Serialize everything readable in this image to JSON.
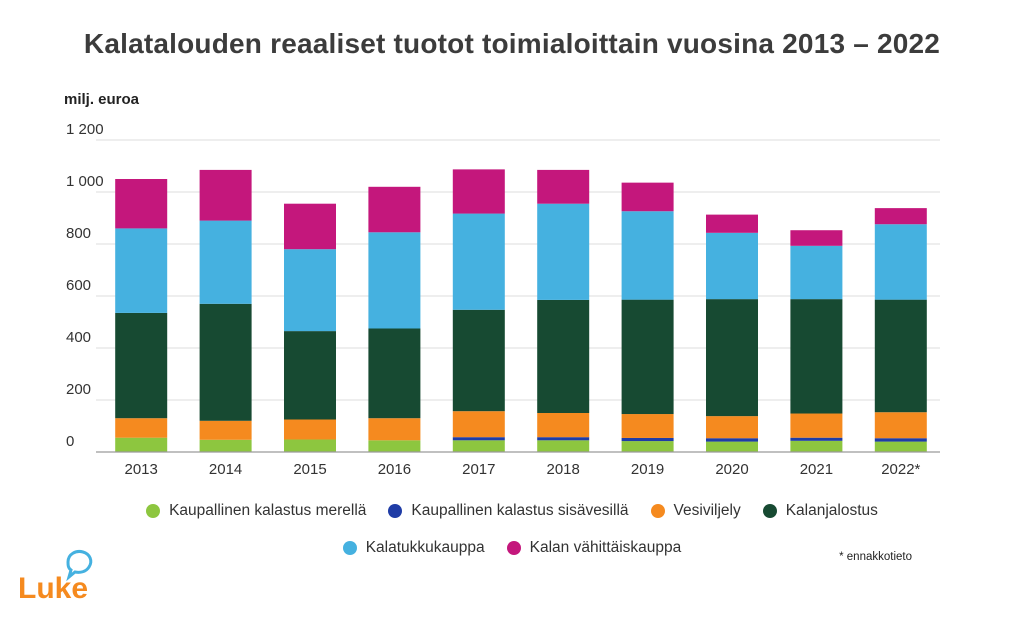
{
  "chart_data": {
    "type": "bar",
    "stacked": true,
    "title": "Kalatalouden reaaliset tuotot toimialoittain vuosina 2013 – 2022",
    "ylabel": "milj. euroa",
    "xlabel": "",
    "ylim": [
      0,
      1200
    ],
    "yticks": [
      0,
      200,
      400,
      600,
      800,
      1000,
      1200
    ],
    "ytick_labels": [
      "0",
      "200",
      "400",
      "600",
      "800",
      "1 000",
      "1 200"
    ],
    "grid": true,
    "legend_position": "bottom",
    "categories": [
      "2013",
      "2014",
      "2015",
      "2016",
      "2017",
      "2018",
      "2019",
      "2020",
      "2021",
      "2022*"
    ],
    "series": [
      {
        "name": "Kaupallinen kalastus merellä",
        "color": "#8dc63f",
        "values": [
          55,
          47,
          48,
          45,
          45,
          45,
          42,
          40,
          43,
          40
        ]
      },
      {
        "name": "Kaupallinen kalastus sisävesillä",
        "color": "#1f3ca6",
        "values": [
          0,
          0,
          0,
          0,
          12,
          12,
          12,
          13,
          12,
          13
        ]
      },
      {
        "name": "Vesiviljely",
        "color": "#f58a1f",
        "values": [
          75,
          73,
          77,
          85,
          100,
          93,
          92,
          85,
          93,
          100
        ]
      },
      {
        "name": "Kalanjalostus",
        "color": "#174a32",
        "values": [
          405,
          450,
          340,
          345,
          390,
          435,
          440,
          450,
          440,
          433
        ]
      },
      {
        "name": "Kalatukkukauppa",
        "color": "#45b1e0",
        "values": [
          325,
          320,
          315,
          370,
          370,
          370,
          340,
          255,
          205,
          290
        ]
      },
      {
        "name": "Kalan vähittäiskauppa",
        "color": "#c4177c",
        "values": [
          190,
          195,
          175,
          175,
          170,
          130,
          110,
          70,
          60,
          62
        ]
      }
    ],
    "footnote": "* ennakkotieto"
  },
  "legend_rows": [
    [
      "Kaupallinen kalastus merellä",
      "Kaupallinen kalastus sisävesillä",
      "Vesiviljely",
      "Kalanjalostus"
    ],
    [
      "Kalatukkukauppa",
      "Kalan vähittäiskauppa"
    ]
  ],
  "logo": {
    "text": "Luke",
    "color": "#f58a1f",
    "icon_color": "#45b1e0"
  }
}
